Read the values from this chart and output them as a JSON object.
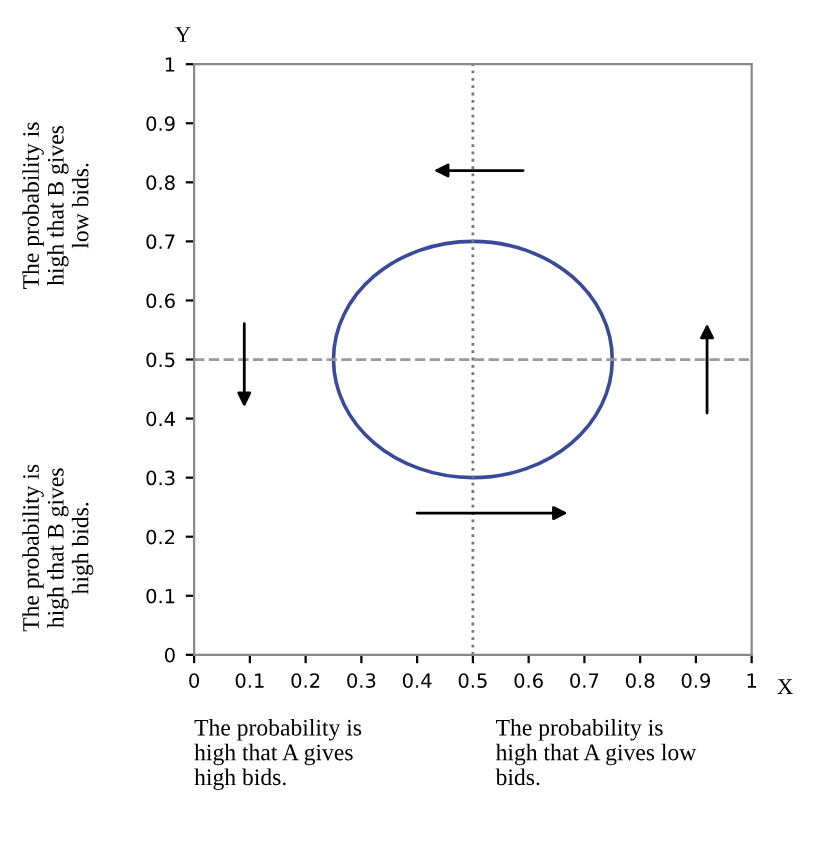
{
  "chart_data": {
    "type": "line",
    "xlabel": "X",
    "ylabel": "Y",
    "xlim": [
      0,
      1
    ],
    "ylim": [
      0,
      1
    ],
    "xticks": [
      0,
      0.1,
      0.2,
      0.3,
      0.4,
      0.5,
      0.6,
      0.7,
      0.8,
      0.9,
      1
    ],
    "yticks": [
      0,
      0.1,
      0.2,
      0.3,
      0.4,
      0.5,
      0.6,
      0.7,
      0.8,
      0.9,
      1
    ],
    "ref_lines": [
      {
        "axis": "x",
        "value": 0.5,
        "color": "#777777",
        "line_style": "dotted"
      },
      {
        "axis": "y",
        "value": 0.5,
        "color": "#999999",
        "line_style": "dashed"
      }
    ],
    "annotations": [
      "The probability is high that B gives low bids.",
      "The probability is high that B gives high bids.",
      "The probability is high that A gives high bids.",
      "The probability is high that A gives low bids."
    ],
    "grid": false,
    "legend": false
  }
}
